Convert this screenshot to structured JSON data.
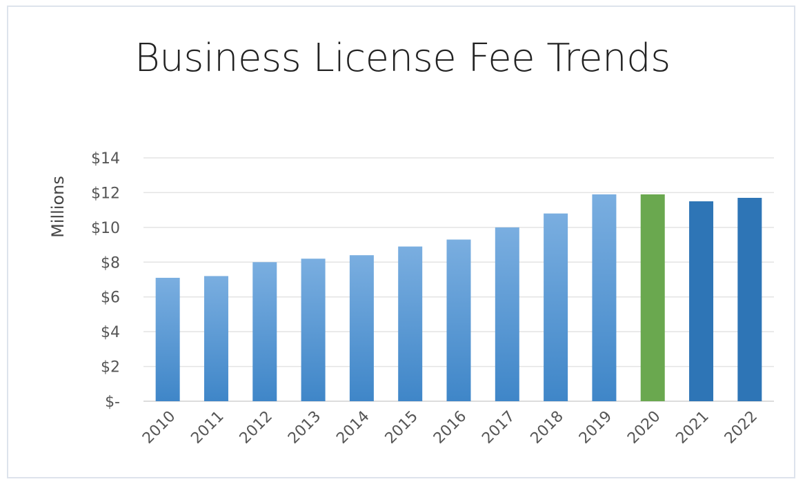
{
  "chart_data": {
    "type": "bar",
    "title": "Business License Fee Trends",
    "ylabel": "Millions",
    "xlabel": "",
    "ylim": [
      0,
      14
    ],
    "ytick_values": [
      0,
      2,
      4,
      6,
      8,
      10,
      12,
      14
    ],
    "ytick_labels": [
      "$-",
      "$2",
      "$4",
      "$6",
      "$8",
      "$10",
      "$12",
      "$14"
    ],
    "categories": [
      "2010",
      "2011",
      "2012",
      "2013",
      "2014",
      "2015",
      "2016",
      "2017",
      "2018",
      "2019",
      "2020",
      "2021",
      "2022"
    ],
    "values": [
      7.1,
      7.2,
      8.0,
      8.2,
      8.4,
      8.9,
      9.3,
      10.0,
      10.8,
      11.9,
      11.9,
      11.5,
      11.7
    ],
    "bar_styles": [
      "light",
      "light",
      "light",
      "light",
      "light",
      "light",
      "light",
      "light",
      "light",
      "light",
      "green",
      "dark",
      "dark"
    ],
    "grid": true,
    "legend": "none",
    "colors": {
      "light_top": "#7aaee0",
      "light_bottom": "#3f86c8",
      "green": "#6aa84f",
      "dark": "#2e75b6",
      "grid": "#e3e3e3",
      "axis": "#d0d0d0"
    }
  }
}
